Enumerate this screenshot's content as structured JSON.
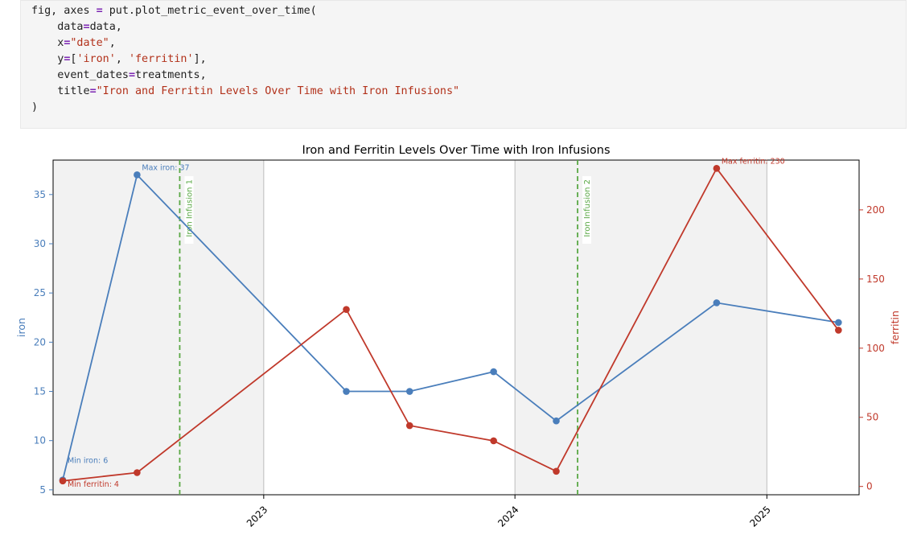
{
  "code_cell": {
    "lines": [
      [
        {
          "t": "id",
          "v": "fig, axes "
        },
        {
          "t": "op",
          "v": "="
        },
        {
          "t": "id",
          "v": " put.plot_metric_event_over_time("
        }
      ],
      [
        {
          "t": "id",
          "v": "    data"
        },
        {
          "t": "op",
          "v": "="
        },
        {
          "t": "id",
          "v": "data,"
        }
      ],
      [
        {
          "t": "id",
          "v": "    x"
        },
        {
          "t": "op",
          "v": "="
        },
        {
          "t": "str",
          "v": "\"date\""
        },
        {
          "t": "id",
          "v": ","
        }
      ],
      [
        {
          "t": "id",
          "v": "    y"
        },
        {
          "t": "op",
          "v": "="
        },
        {
          "t": "id",
          "v": "["
        },
        {
          "t": "str",
          "v": "'iron'"
        },
        {
          "t": "id",
          "v": ", "
        },
        {
          "t": "str",
          "v": "'ferritin'"
        },
        {
          "t": "id",
          "v": "],"
        }
      ],
      [
        {
          "t": "id",
          "v": "    event_dates"
        },
        {
          "t": "op",
          "v": "="
        },
        {
          "t": "id",
          "v": "treatments,"
        }
      ],
      [
        {
          "t": "id",
          "v": "    title"
        },
        {
          "t": "op",
          "v": "="
        },
        {
          "t": "str",
          "v": "\"Iron and Ferritin Levels Over Time with Iron Infusions\""
        }
      ],
      [
        {
          "t": "id",
          "v": ")"
        }
      ]
    ]
  },
  "chart_data": {
    "type": "line",
    "title": "Iron and Ferritin Levels Over Time with Iron Infusions",
    "xlabel": "",
    "x_domain": [
      "2022-03-01",
      "2025-05-15"
    ],
    "x_ticks": [
      {
        "date": "2023-01-01",
        "label": "2023"
      },
      {
        "date": "2024-01-01",
        "label": "2024"
      },
      {
        "date": "2025-01-01",
        "label": "2025"
      }
    ],
    "dates": [
      "2022-03-15",
      "2022-07-01",
      "2023-05-01",
      "2023-08-01",
      "2023-12-01",
      "2024-03-01",
      "2024-10-20",
      "2025-04-15"
    ],
    "series": [
      {
        "name": "iron",
        "axis": "left",
        "color": "#4a7ebb",
        "values": [
          6,
          37,
          15,
          15,
          17,
          12,
          24,
          22
        ]
      },
      {
        "name": "ferritin",
        "axis": "right",
        "color": "#c0392b",
        "values": [
          4,
          10,
          128,
          44,
          33,
          11,
          230,
          113
        ]
      }
    ],
    "y_left": {
      "label": "iron",
      "ylim": [
        4.5,
        38.5
      ],
      "ticks": [
        5,
        10,
        15,
        20,
        25,
        30,
        35
      ],
      "color": "#4a7ebb"
    },
    "y_right": {
      "label": "ferritin",
      "ylim": [
        -6,
        236
      ],
      "ticks": [
        0,
        50,
        100,
        150,
        200
      ],
      "color": "#c0392b"
    },
    "shaded_periods": [
      {
        "start": "2022-03-01",
        "end": "2023-01-01"
      },
      {
        "start": "2024-01-01",
        "end": "2025-01-01"
      }
    ],
    "events": [
      {
        "date": "2022-09-01",
        "label": "Iron Infusion 1",
        "color": "#5aa845"
      },
      {
        "date": "2024-04-01",
        "label": "Iron Infusion 2",
        "color": "#5aa845"
      }
    ],
    "annotations": [
      {
        "series": "iron",
        "index": 1,
        "text": "Max iron: 37"
      },
      {
        "series": "iron",
        "index": 0,
        "text": "Min iron: 6"
      },
      {
        "series": "ferritin",
        "index": 6,
        "text": "Max ferritin: 230"
      },
      {
        "series": "ferritin",
        "index": 0,
        "text": "Min ferritin: 4"
      }
    ],
    "grid": false
  }
}
